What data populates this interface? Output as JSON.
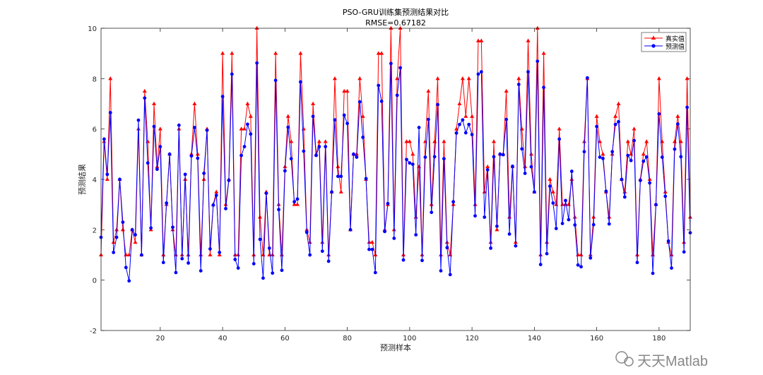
{
  "chart_data": {
    "type": "line",
    "title": "PSO-GRU训练集预测结果对比",
    "subtitle": "RMSE=0.67182",
    "xlabel": "预测样本",
    "ylabel": "预测结果",
    "xlim": [
      1,
      190
    ],
    "ylim": [
      -2,
      10
    ],
    "xticks": [
      20,
      40,
      60,
      80,
      100,
      120,
      140,
      160,
      180
    ],
    "yticks": [
      -2,
      0,
      2,
      4,
      6,
      8,
      10
    ],
    "grid": false,
    "legend_position": "top-right",
    "series": [
      {
        "name": "真实值",
        "color": "#ff0000",
        "marker": "triangle",
        "values": [
          1,
          5.5,
          4,
          8,
          1.5,
          2,
          4,
          2,
          1,
          1,
          2,
          1.5,
          6,
          1,
          7.5,
          5.5,
          2,
          7,
          4.5,
          6,
          1,
          3,
          5,
          2,
          1,
          6,
          1,
          4,
          1,
          5,
          7,
          5,
          1,
          4,
          6,
          1,
          3,
          3.5,
          1,
          9,
          3,
          4,
          9,
          1,
          1,
          6,
          6,
          7,
          6.5,
          1,
          10,
          2.5,
          1,
          3.5,
          1,
          1,
          9,
          3,
          1,
          4.5,
          6.5,
          5.5,
          3,
          3,
          9,
          6,
          2,
          1.5,
          7,
          5,
          5.5,
          1.5,
          5.5,
          1,
          3.5,
          8,
          4.5,
          3.5,
          7.5,
          7.5,
          2,
          5,
          5,
          8,
          6.5,
          4,
          1.5,
          1.5,
          1,
          9,
          9,
          2,
          3,
          10,
          2,
          8,
          10,
          1,
          5.5,
          5.5,
          5,
          2.5,
          4.5,
          1,
          5.5,
          7.5,
          3,
          5.5,
          8,
          1,
          5.5,
          1.5,
          1,
          3,
          6,
          7,
          8,
          6.5,
          8,
          6.5,
          3,
          9.5,
          9.5,
          3.5,
          4.5,
          1.5,
          5.5,
          2,
          5,
          5,
          7.5,
          2.5,
          4.5,
          1.5,
          8,
          6,
          4.5,
          9.5,
          5,
          3.5,
          10,
          1,
          9,
          1.5,
          4,
          3.5,
          3,
          6,
          3,
          3,
          3,
          4,
          2.5,
          1,
          1,
          5.5,
          8,
          1,
          2.5,
          6.5,
          5.5,
          5,
          3.5,
          2.5,
          5,
          6.5,
          7,
          4,
          3.5,
          5.5,
          5,
          6,
          1,
          4,
          5,
          5.5,
          4,
          1,
          3,
          8,
          5.5,
          3.5,
          1.5,
          1,
          5.5,
          6.5,
          5.5,
          1.5,
          8,
          2.5
        ]
      },
      {
        "name": "预测值",
        "color": "#0000ff",
        "marker": "circle",
        "values": [
          1.7,
          5.6,
          4.2,
          6.65,
          1.1,
          1.7,
          4,
          2.3,
          0.5,
          -0.03,
          2.0,
          1.8,
          6.35,
          1,
          7.23,
          4.65,
          2.07,
          6.1,
          4.4,
          5.3,
          0.7,
          3.06,
          5.0,
          2.1,
          0.3,
          6.15,
          0.85,
          4.2,
          0.68,
          4.93,
          6.06,
          4.84,
          0.37,
          4.24,
          5.95,
          1.24,
          2.98,
          3.37,
          1.1,
          7.29,
          2.84,
          3.96,
          8.18,
          0.82,
          0.48,
          4.95,
          5.3,
          6.19,
          5.8,
          0.65,
          8.62,
          1.62,
          0.08,
          3.45,
          1.27,
          0.28,
          7.93,
          2.8,
          0.39,
          4.34,
          6.07,
          4.82,
          3.11,
          3.22,
          7.87,
          5.12,
          1.9,
          1.0,
          6.5,
          4.95,
          5.3,
          1.15,
          5.3,
          0.75,
          3.5,
          6.36,
          4.12,
          4.12,
          6.55,
          6.22,
          2.0,
          5.0,
          4.88,
          7.08,
          5.67,
          4.03,
          1.22,
          1.22,
          0.3,
          7.73,
          7.1,
          1.93,
          3.04,
          8.6,
          1.66,
          7.34,
          8.43,
          0.8,
          4.79,
          4.65,
          4.6,
          1.8,
          6.06,
          0.78,
          4.88,
          6.38,
          2.69,
          4.9,
          6.97,
          0.37,
          4.82,
          1.29,
          0.22,
          3.11,
          5.84,
          6.18,
          6.36,
          5.85,
          6.18,
          5.78,
          2.55,
          8.18,
          8.27,
          2.5,
          4.38,
          1.27,
          4.9,
          2.14,
          5.0,
          4.98,
          6.38,
          1.83,
          4.52,
          1.36,
          7.77,
          5.21,
          4.24,
          8.27,
          4.5,
          3.5,
          8.69,
          0.62,
          7.65,
          1.05,
          3.73,
          3.06,
          2.05,
          5.6,
          2.25,
          3.16,
          2.4,
          4.32,
          2.19,
          0.6,
          0.53,
          5.1,
          8.03,
          0.88,
          2.2,
          6.1,
          4.88,
          4.83,
          3.53,
          2.23,
          5.1,
          6.18,
          6.29,
          4.0,
          3.3,
          4.95,
          4.75,
          5.54,
          0.7,
          3.96,
          4.72,
          4.89,
          3.86,
          0.27,
          3.0,
          6.6,
          4.88,
          3.33,
          1.55,
          0.48,
          5.2,
          6.2,
          4.9,
          1.12,
          6.86,
          1.88
        ]
      }
    ]
  },
  "watermark": "天天Matlab"
}
